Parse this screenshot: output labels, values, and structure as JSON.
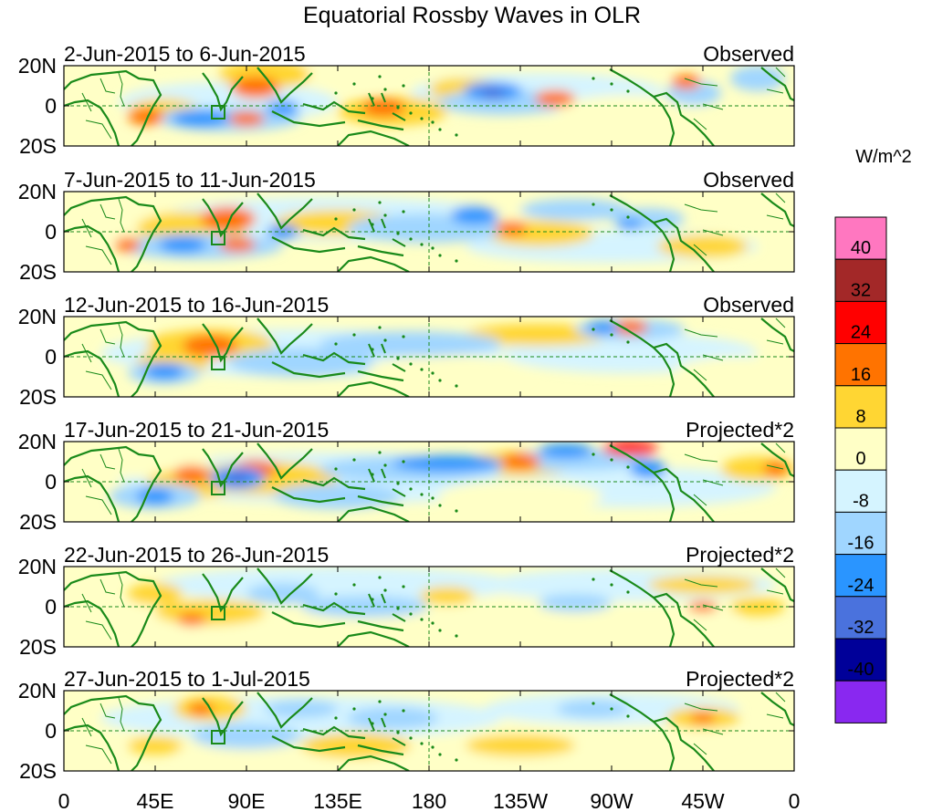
{
  "title": "Equatorial Rossby Waves in OLR",
  "units": "W/m^2",
  "panels": [
    {
      "date_range": "2-Jun-2015 to 6-Jun-2015",
      "status": "Observed"
    },
    {
      "date_range": "7-Jun-2015 to 11-Jun-2015",
      "status": "Observed"
    },
    {
      "date_range": "12-Jun-2015 to 16-Jun-2015",
      "status": "Observed"
    },
    {
      "date_range": "17-Jun-2015 to 21-Jun-2015",
      "status": "Projected*2"
    },
    {
      "date_range": "22-Jun-2015 to 26-Jun-2015",
      "status": "Projected*2"
    },
    {
      "date_range": "27-Jun-2015 to 1-Jul-2015",
      "status": "Projected*2"
    }
  ],
  "lat_labels": [
    "20N",
    "0",
    "20S"
  ],
  "lon_labels": [
    "0",
    "45E",
    "90E",
    "135E",
    "180",
    "135W",
    "90W",
    "45W",
    "0"
  ],
  "colorbar": {
    "labels": [
      "40",
      "32",
      "24",
      "16",
      "8",
      "0",
      "-8",
      "-16",
      "-24",
      "-32",
      "-40"
    ],
    "colors": [
      "#ff77c0",
      "#a32828",
      "#ff0000",
      "#ff7300",
      "#ffd633",
      "#ffffc6",
      "#d5f4ff",
      "#a0d6ff",
      "#2a95ff",
      "#4a72dd",
      "#000099",
      "#8928f0"
    ]
  },
  "palette": {
    "coast": "#1a8a1a",
    "pos_light": "#ffffc6",
    "pos_mid": "#ffd633",
    "pos_strong": "#ff7300",
    "pos_max": "#ff0000",
    "neg_light": "#d5f4ff",
    "neg_mid": "#a0d6ff",
    "neg_strong": "#2a95ff",
    "neg_max": "#4a72dd"
  }
}
